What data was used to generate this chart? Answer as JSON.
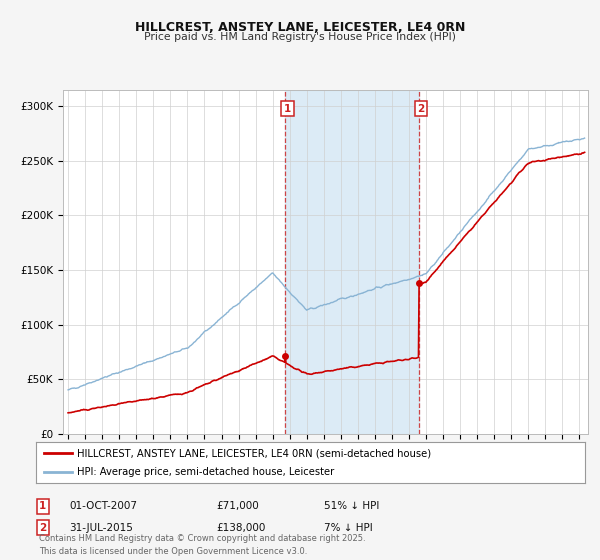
{
  "title": "HILLCREST, ANSTEY LANE, LEICESTER, LE4 0RN",
  "subtitle": "Price paid vs. HM Land Registry's House Price Index (HPI)",
  "ylabel_ticks": [
    "£0",
    "£50K",
    "£100K",
    "£150K",
    "£200K",
    "£250K",
    "£300K"
  ],
  "ytick_values": [
    0,
    50000,
    100000,
    150000,
    200000,
    250000,
    300000
  ],
  "ylim": [
    0,
    315000
  ],
  "xlim_start": 1994.7,
  "xlim_end": 2025.5,
  "hpi_color": "#8ab4d4",
  "price_color": "#cc0000",
  "background_color": "#f5f5f5",
  "plot_bg_color": "#ffffff",
  "marker1_date": 2007.75,
  "marker1_price": 71000,
  "marker2_date": 2015.58,
  "marker2_price": 138000,
  "legend_entry1": "HILLCREST, ANSTEY LANE, LEICESTER, LE4 0RN (semi-detached house)",
  "legend_entry2": "HPI: Average price, semi-detached house, Leicester",
  "annotation1_date": "01-OCT-2007",
  "annotation1_price": "£71,000",
  "annotation1_hpi": "51% ↓ HPI",
  "annotation2_date": "31-JUL-2015",
  "annotation2_price": "£138,000",
  "annotation2_hpi": "7% ↓ HPI",
  "footer": "Contains HM Land Registry data © Crown copyright and database right 2025.\nThis data is licensed under the Open Government Licence v3.0.",
  "shade_x_start": 2007.75,
  "shade_x_end": 2015.58
}
